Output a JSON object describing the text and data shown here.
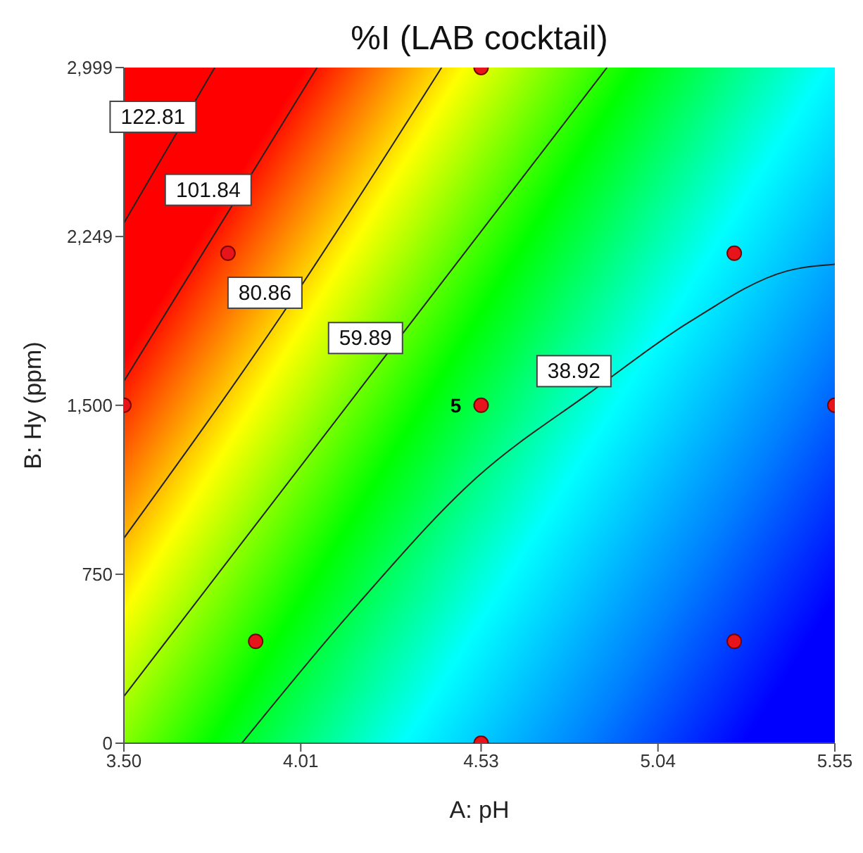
{
  "chart_data": {
    "type": "line",
    "title": "%I (LAB cocktail)",
    "xlabel": "A: pH",
    "ylabel": "B: Hy (ppm)",
    "xlim": [
      3.5,
      5.55
    ],
    "xticks": [
      {
        "value": 3.5,
        "label": "3.50"
      },
      {
        "value": 4.01,
        "label": "4.01"
      },
      {
        "value": 4.53,
        "label": "4.53"
      },
      {
        "value": 5.04,
        "label": "5.04"
      },
      {
        "value": 5.55,
        "label": "5.55"
      }
    ],
    "ylim": [
      0,
      2999
    ],
    "yticks": [
      0,
      750,
      {
        "value": 1500,
        "label": "1,500"
      },
      {
        "value": 2249,
        "label": "2,249"
      },
      {
        "value": 2999,
        "label": "2,999"
      }
    ],
    "series": [
      {
        "name": "122.81",
        "color": "#222222",
        "x": [
          3.5,
          3.646,
          3.762
        ],
        "values": [
          2309,
          2693,
          2999
        ]
      },
      {
        "name": "101.84",
        "color": "#222222",
        "x": [
          3.5,
          3.805,
          4.057
        ],
        "values": [
          1607,
          2369,
          2999
        ]
      },
      {
        "name": "80.86",
        "color": "#222222",
        "x": [
          3.5,
          3.96,
          4.416
        ],
        "values": [
          910,
          1912,
          2999
        ]
      },
      {
        "name": "59.89",
        "color": "#222222",
        "x": [
          3.5,
          4.25,
          4.893
        ],
        "values": [
          208,
          1711,
          2999
        ]
      },
      {
        "name": "38.92",
        "color": "#222222",
        "x": [
          3.84,
          4.157,
          4.517,
          4.851,
          5.13,
          5.41,
          5.55
        ],
        "values": [
          0,
          586,
          1179,
          1564,
          1869,
          2095,
          2126
        ]
      },
      {
        "type": "scatter",
        "color": "#e8141c",
        "x": [
          3.5,
          3.8,
          4.53,
          4.53,
          4.53,
          5.26,
          5.55,
          3.88,
          5.26
        ],
        "values": [
          1500,
          2175,
          2999,
          1500,
          0,
          2175,
          1500,
          452,
          452
        ]
      }
    ],
    "annotations": [
      {
        "text": "5",
        "x": 4.53,
        "y": 1500
      }
    ]
  }
}
